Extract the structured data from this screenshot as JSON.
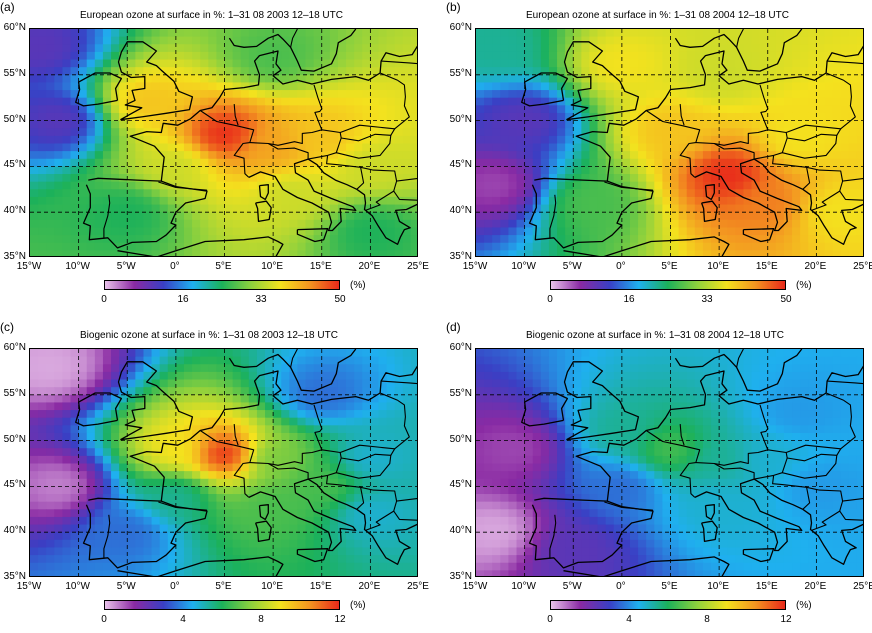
{
  "panels": [
    {
      "label": "(a)",
      "title": "European ozone at surface in %: 1–31 08 2003 12–18 UTC",
      "colorbar": {
        "ticks": [
          "0",
          "16",
          "33",
          "50"
        ],
        "unit": "(%)",
        "scale": "european"
      },
      "hotspots": [
        {
          "lon": 5,
          "lat": 48.5,
          "value": 1.0
        },
        {
          "lon": 10,
          "lat": 47,
          "value": 0.85
        },
        {
          "lon": 15,
          "lat": 48,
          "value": 0.8
        },
        {
          "lon": -3,
          "lat": 52,
          "value": 0.8
        },
        {
          "lon": 0,
          "lat": 45,
          "value": 0.7
        },
        {
          "lon": 20,
          "lat": 45,
          "value": 0.7
        },
        {
          "lon": 12,
          "lat": 42,
          "value": 0.7
        },
        {
          "lon": 10,
          "lat": 57,
          "value": 0.55
        },
        {
          "lon": -5,
          "lat": 40,
          "value": 0.5
        },
        {
          "lon": 20,
          "lat": 38,
          "value": 0.5
        },
        {
          "lon": -12,
          "lat": 50,
          "value": 0.2
        },
        {
          "lon": -14,
          "lat": 58,
          "value": 0.2
        }
      ]
    },
    {
      "label": "(b)",
      "title": "European ozone at surface in %: 1–31 08 2004 12–18 UTC",
      "colorbar": {
        "ticks": [
          "0",
          "16",
          "33",
          "50"
        ],
        "unit": "(%)",
        "scale": "european"
      },
      "hotspots": [
        {
          "lon": 11,
          "lat": 44,
          "value": 1.0
        },
        {
          "lon": 15,
          "lat": 41,
          "value": 0.9
        },
        {
          "lon": 5,
          "lat": 49,
          "value": 0.8
        },
        {
          "lon": 18,
          "lat": 48,
          "value": 0.75
        },
        {
          "lon": 0,
          "lat": 56,
          "value": 0.75
        },
        {
          "lon": 10,
          "lat": 55,
          "value": 0.7
        },
        {
          "lon": 22,
          "lat": 40,
          "value": 0.75
        },
        {
          "lon": -3,
          "lat": 41,
          "value": 0.55
        },
        {
          "lon": -13,
          "lat": 58,
          "value": 0.45
        },
        {
          "lon": -13,
          "lat": 43,
          "value": 0.1
        },
        {
          "lon": -10,
          "lat": 50,
          "value": 0.2
        }
      ]
    },
    {
      "label": "(c)",
      "title": "Biogenic ozone at surface in %: 1–31 08 2003 12–18 UTC",
      "colorbar": {
        "ticks": [
          "0",
          "4",
          "8",
          "12"
        ],
        "unit": "(%)",
        "scale": "biogenic"
      },
      "hotspots": [
        {
          "lon": 5,
          "lat": 48.5,
          "value": 1.0
        },
        {
          "lon": 0,
          "lat": 49,
          "value": 0.75
        },
        {
          "lon": 10,
          "lat": 48,
          "value": 0.6
        },
        {
          "lon": 15,
          "lat": 45,
          "value": 0.55
        },
        {
          "lon": 10,
          "lat": 43,
          "value": 0.55
        },
        {
          "lon": 0,
          "lat": 44,
          "value": 0.45
        },
        {
          "lon": 20,
          "lat": 48,
          "value": 0.4
        },
        {
          "lon": 20,
          "lat": 42,
          "value": 0.4
        },
        {
          "lon": -5,
          "lat": 40,
          "value": 0.3
        },
        {
          "lon": 15,
          "lat": 55,
          "value": 0.3
        },
        {
          "lon": -13,
          "lat": 58,
          "value": 0.02
        },
        {
          "lon": -12,
          "lat": 45,
          "value": 0.05
        }
      ]
    },
    {
      "label": "(d)",
      "title": "Biogenic ozone at surface in %: 1–31 08 2004 12–18 UTC",
      "colorbar": {
        "ticks": [
          "0",
          "4",
          "8",
          "12"
        ],
        "unit": "(%)",
        "scale": "biogenic"
      },
      "hotspots": [
        {
          "lon": 5,
          "lat": 49,
          "value": 0.55
        },
        {
          "lon": 0,
          "lat": 51,
          "value": 0.45
        },
        {
          "lon": 10,
          "lat": 48,
          "value": 0.45
        },
        {
          "lon": 15,
          "lat": 48,
          "value": 0.4
        },
        {
          "lon": 18,
          "lat": 53,
          "value": 0.35
        },
        {
          "lon": 10,
          "lat": 43,
          "value": 0.4
        },
        {
          "lon": 20,
          "lat": 45,
          "value": 0.35
        },
        {
          "lon": 0,
          "lat": 45,
          "value": 0.3
        },
        {
          "lon": -13,
          "lat": 40,
          "value": 0.02
        },
        {
          "lon": -11,
          "lat": 49,
          "value": 0.1
        },
        {
          "lon": -5,
          "lat": 38,
          "value": 0.2
        }
      ]
    }
  ],
  "lat_labels": [
    "60°N",
    "55°N",
    "50°N",
    "45°N",
    "40°N",
    "35°N"
  ],
  "lon_labels": [
    "15°W",
    "10°W",
    "5°W",
    "0°",
    "5°E",
    "10°E",
    "15°E",
    "20°E",
    "25°E"
  ],
  "color_scales": {
    "european": [
      "#e9c2ea",
      "#8a2aa3",
      "#3a3fc4",
      "#1fb0ef",
      "#1cb15a",
      "#8ed13d",
      "#f4e21e",
      "#f39421",
      "#e8291a"
    ],
    "biogenic": [
      "#e9c2ea",
      "#8a2aa3",
      "#3a3fc4",
      "#1fb0ef",
      "#1cb15a",
      "#8ed13d",
      "#f4e21e",
      "#f39421",
      "#e8291a"
    ]
  }
}
